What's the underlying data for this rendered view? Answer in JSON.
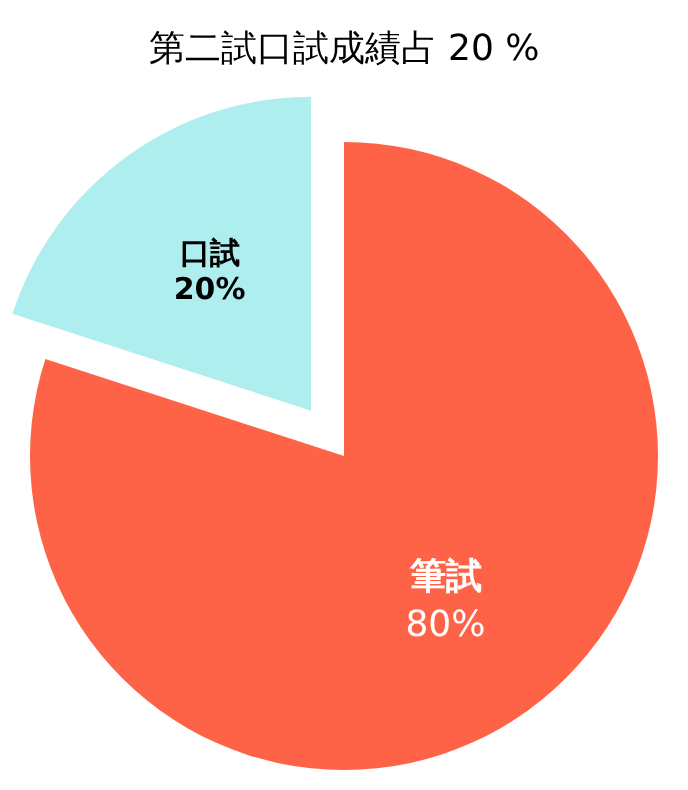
{
  "chart_data": {
    "type": "pie",
    "title": "第二試口試成績占 20 %",
    "categories": [
      "筆試",
      "口試"
    ],
    "values": [
      80,
      20
    ],
    "colors": [
      "#ff6347",
      "#afeeee"
    ],
    "value_labels": [
      "80%",
      "20%"
    ]
  }
}
